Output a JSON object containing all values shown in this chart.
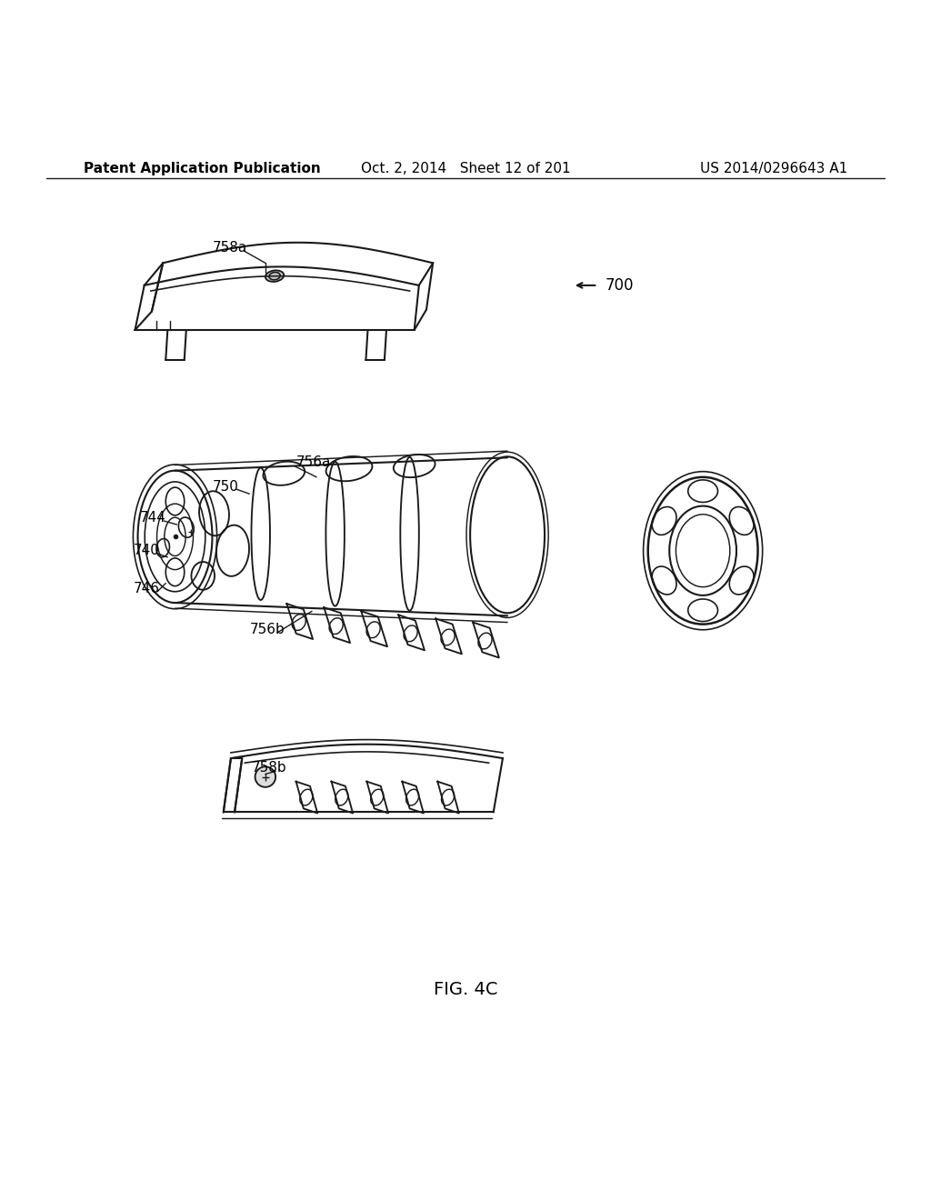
{
  "background_color": "#ffffff",
  "header_left": "Patent Application Publication",
  "header_center": "Oct. 2, 2014   Sheet 12 of 201",
  "header_right": "US 2014/0296643 A1",
  "figure_label": "FIG. 4C",
  "line_color": "#1a1a1a",
  "text_color": "#000000",
  "header_fontsize": 11,
  "label_fontsize": 11,
  "fig_label_fontsize": 14
}
